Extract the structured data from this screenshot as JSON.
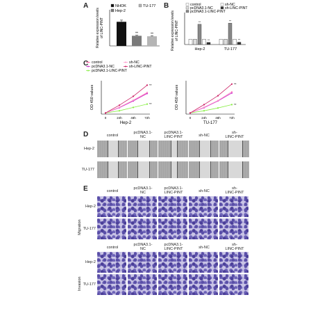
{
  "panel_letters": [
    "A",
    "B",
    "C",
    "D",
    "E"
  ],
  "chart_data": [
    {
      "panel": "A",
      "type": "bar",
      "ylabel": "Relative expression levels of LINC-PINT",
      "ylabel_lines": [
        "Relative expression levels",
        "of LINC-PINT"
      ],
      "legend": [
        "NHOK",
        "Hep-2",
        "TU-177"
      ],
      "categories": [
        "NHOK",
        "Hep-2",
        "TU-177"
      ],
      "values": [
        1.0,
        0.42,
        0.4
      ],
      "errors": [
        0.07,
        0.02,
        0.02
      ],
      "significance": [
        "",
        "**",
        "**"
      ],
      "ylim": [
        0,
        1.5
      ],
      "colors": [
        "#111111",
        "#7a7a7a",
        "#b5b5b5"
      ]
    },
    {
      "panel": "B",
      "type": "bar",
      "ylabel": "Relative expression levels of LINC-PINT",
      "ylabel_lines": [
        "Relative expression levels",
        "of LINC-PINT"
      ],
      "legend": [
        "control",
        "pcDNA3.1-NC",
        "pcDNA3.1-LINC-PINT",
        "sh-NC",
        "sh-LINC-PINT"
      ],
      "categories": [
        "Hep-2",
        "TU-177"
      ],
      "series": [
        {
          "name": "control",
          "values": [
            0.5,
            0.5
          ]
        },
        {
          "name": "pcDNA3.1-NC",
          "values": [
            0.5,
            0.5
          ]
        },
        {
          "name": "pcDNA3.1-LINC-PINT",
          "values": [
            1.9,
            2.0
          ]
        },
        {
          "name": "sh-NC",
          "values": [
            0.5,
            0.5
          ]
        },
        {
          "name": "sh-LINC-PINT",
          "values": [
            0.2,
            0.22
          ]
        }
      ],
      "significance": [
        "",
        "",
        "**",
        "",
        "**"
      ],
      "ylim": [
        0,
        3
      ],
      "colors": [
        "#ffffff",
        "#dddddd",
        "#888888",
        "#ffffff",
        "#333333"
      ]
    },
    {
      "panel": "C-left",
      "type": "line",
      "xlabel": "Hep-2",
      "ylabel": "OD 450 values",
      "x": [
        "0",
        "24h",
        "48h",
        "72h"
      ],
      "legend": [
        "control",
        "pcDNA3.1-NC",
        "pcDNA3.1-LINC-PINT",
        "sh-NC",
        "sh-LINC-PINT"
      ],
      "series": [
        {
          "name": "control",
          "values": [
            0.1,
            0.6,
            1.2,
            1.9
          ]
        },
        {
          "name": "pcDNA3.1-NC",
          "values": [
            0.1,
            0.58,
            1.18,
            1.85
          ]
        },
        {
          "name": "pcDNA3.1-LINC-PINT",
          "values": [
            0.1,
            0.3,
            0.6,
            0.9
          ]
        },
        {
          "name": "sh-NC",
          "values": [
            0.1,
            0.62,
            1.25,
            1.95
          ]
        },
        {
          "name": "sh-LINC-PINT",
          "values": [
            0.1,
            0.8,
            1.6,
            2.6
          ]
        }
      ],
      "significance": [
        "",
        "",
        "**",
        "",
        "**"
      ],
      "ylim": [
        0,
        3
      ],
      "colors": [
        "#ff66aa",
        "#cc33cc",
        "#88ee44",
        "#ff99cc",
        "#cc2266"
      ]
    },
    {
      "panel": "C-right",
      "type": "line",
      "xlabel": "TU-177",
      "ylabel": "OD 450 values",
      "x": [
        "0",
        "24h",
        "48h",
        "72h"
      ],
      "legend": [
        "control",
        "pcDNA3.1-NC",
        "pcDNA3.1-LINC-PINT",
        "sh-NC",
        "sh-LINC-PINT"
      ],
      "series": [
        {
          "name": "control",
          "values": [
            0.1,
            0.6,
            1.2,
            2.0
          ]
        },
        {
          "name": "pcDNA3.1-NC",
          "values": [
            0.1,
            0.58,
            1.18,
            1.9
          ]
        },
        {
          "name": "pcDNA3.1-LINC-PINT",
          "values": [
            0.1,
            0.3,
            0.55,
            0.85
          ]
        },
        {
          "name": "sh-NC",
          "values": [
            0.1,
            0.62,
            1.22,
            2.0
          ]
        },
        {
          "name": "sh-LINC-PINT",
          "values": [
            0.1,
            0.85,
            1.65,
            2.7
          ]
        }
      ],
      "significance": [
        "",
        "",
        "**",
        "",
        "**"
      ],
      "ylim": [
        0,
        3
      ],
      "colors": [
        "#ff66aa",
        "#cc33cc",
        "#88ee44",
        "#ff99cc",
        "#cc2266"
      ]
    }
  ],
  "panel_d": {
    "columns": [
      "control",
      "pcDNA3.1-NC",
      "pcDNA3.1-LINC-PINT",
      "sh-NC",
      "sh-LINC-PINT"
    ],
    "column_lines": [
      [
        "control"
      ],
      [
        "pcDNA3.1-",
        "NC"
      ],
      [
        "pcDNA3.1-",
        "LINC-PINT"
      ],
      [
        "sh-NC"
      ],
      [
        "sh-",
        "LINC-PINT"
      ]
    ],
    "rows": [
      "Hep-2",
      "TU-177"
    ]
  },
  "panel_e": {
    "columns": [
      "control",
      "pcDNA3.1-NC",
      "pcDNA3.1-LINC-PINT",
      "sh-NC",
      "sh-LINC-PINT"
    ],
    "column_lines": [
      [
        "control"
      ],
      [
        "pcDNA3.1-",
        "NC"
      ],
      [
        "pcDNA3.1-",
        "LINC-PINT"
      ],
      [
        "sh-NC"
      ],
      [
        "sh-",
        "LINC-PINT"
      ]
    ],
    "groups": [
      "Migration",
      "Invasion"
    ],
    "rows": [
      "Hep-2",
      "TU-177"
    ]
  }
}
